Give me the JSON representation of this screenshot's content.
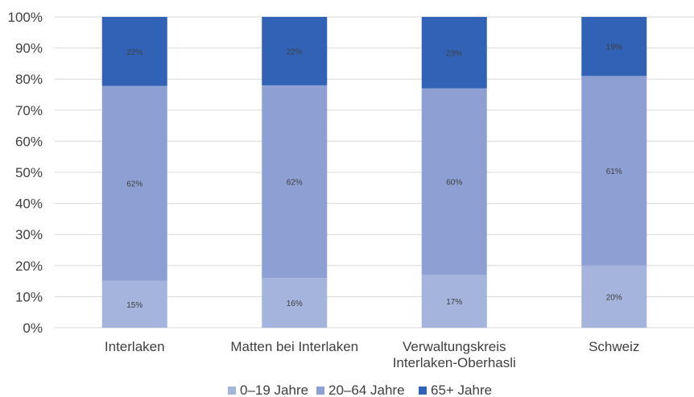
{
  "chart_data": {
    "type": "bar",
    "stacked": true,
    "percent_stacked": true,
    "categories": [
      [
        "Interlaken"
      ],
      [
        "Matten bei Interlaken"
      ],
      [
        "Verwaltungskreis",
        "Interlaken-Oberhasli"
      ],
      [
        "Schweiz"
      ]
    ],
    "series": [
      {
        "name": "0–19 Jahre",
        "values": [
          15,
          16,
          17,
          20
        ],
        "labels": [
          "15%",
          "16%",
          "17%",
          "20%"
        ],
        "color": "#a4b4dd"
      },
      {
        "name": "20–64 Jahre",
        "values": [
          62,
          62,
          60,
          61
        ],
        "labels": [
          "62%",
          "62%",
          "60%",
          "61%"
        ],
        "color": "#8d9fd3"
      },
      {
        "name": "65+ Jahre",
        "values": [
          22,
          22,
          23,
          19
        ],
        "labels": [
          "22%",
          "22%",
          "23%",
          "19%"
        ],
        "color": "#3162b5"
      }
    ],
    "ylim": [
      0,
      100
    ],
    "yticks": [
      "0%",
      "10%",
      "20%",
      "30%",
      "40%",
      "50%",
      "60%",
      "70%",
      "80%",
      "90%",
      "100%"
    ],
    "grid": true,
    "legend": "bottom",
    "gridline_color": "#d9d9d9"
  }
}
